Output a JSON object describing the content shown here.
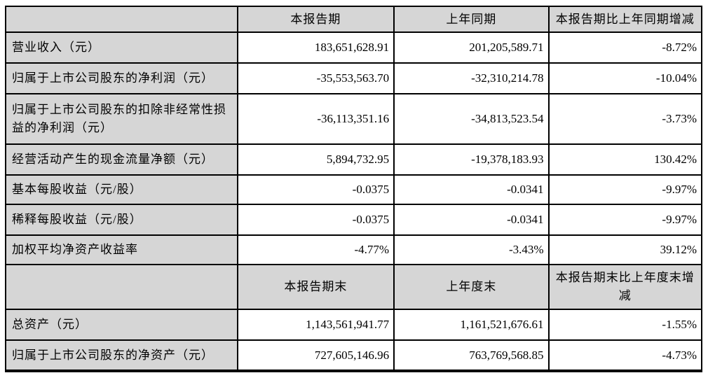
{
  "document": {
    "section_period": {
      "headers": {
        "blank": "",
        "current": "本报告期",
        "prior": "上年同期",
        "change": "本报告期比上年同期增减"
      },
      "rows": [
        {
          "label": "营业收入（元）",
          "current": "183,651,628.91",
          "prior": "201,205,589.71",
          "change": "-8.72%"
        },
        {
          "label": "归属于上市公司股东的净利润（元）",
          "current": "-35,553,563.70",
          "prior": "-32,310,214.78",
          "change": "-10.04%"
        },
        {
          "label": "归属于上市公司股东的扣除非经常性损益的净利润（元）",
          "current": "-36,113,351.16",
          "prior": "-34,813,523.54",
          "change": "-3.73%"
        },
        {
          "label": "经营活动产生的现金流量净额（元）",
          "current": "5,894,732.95",
          "prior": "-19,378,183.93",
          "change": "130.42%"
        },
        {
          "label": "基本每股收益（元/股）",
          "current": "-0.0375",
          "prior": "-0.0341",
          "change": "-9.97%"
        },
        {
          "label": "稀释每股收益（元/股）",
          "current": "-0.0375",
          "prior": "-0.0341",
          "change": "-9.97%"
        },
        {
          "label": "加权平均净资产收益率",
          "current": "-4.77%",
          "prior": "-3.43%",
          "change": "39.12%"
        }
      ]
    },
    "section_period_end": {
      "headers": {
        "blank": "",
        "current": "本报告期末",
        "prior": "上年度末",
        "change": "本报告期末比上年度末增减"
      },
      "rows": [
        {
          "label": "总资产（元）",
          "current": "1,143,561,941.77",
          "prior": "1,161,521,676.61",
          "change": "-1.55%"
        },
        {
          "label": "归属于上市公司股东的净资产（元）",
          "current": "727,605,146.96",
          "prior": "763,769,568.85",
          "change": "-4.73%"
        }
      ]
    },
    "colors": {
      "header_bg": "#d6d6d6",
      "label_bg": "#d6d6d6",
      "data_bg": "#ffffff",
      "border": "#000000"
    }
  }
}
